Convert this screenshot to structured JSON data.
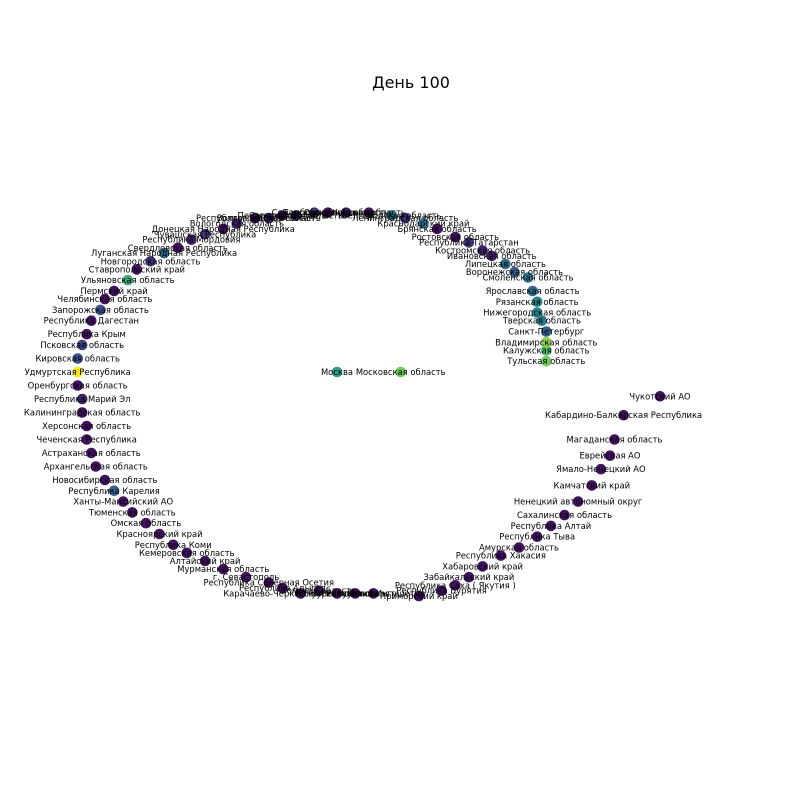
{
  "chart_data": {
    "type": "network",
    "title": "День 100",
    "colormap": "viridis",
    "color_scale": [
      0,
      1
    ],
    "nodes": [
      {
        "label": "Москва",
        "x": 0.0,
        "y": 0.0,
        "v": 0.55
      },
      {
        "label": "Московская область",
        "x": 0.14,
        "y": 0.0,
        "v": 0.78
      },
      {
        "label": "Тульская область",
        "x": 0.46,
        "y": 0.04,
        "v": 0.78
      },
      {
        "label": "Калужская область",
        "x": 0.46,
        "y": 0.08,
        "v": 0.7
      },
      {
        "label": "Владимирская область",
        "x": 0.46,
        "y": 0.11,
        "v": 0.82
      },
      {
        "label": "Санкт-Петербург",
        "x": 0.46,
        "y": 0.15,
        "v": 0.3
      },
      {
        "label": "Тверская область",
        "x": 0.45,
        "y": 0.19,
        "v": 0.4
      },
      {
        "label": "Нижегородская область",
        "x": 0.44,
        "y": 0.22,
        "v": 0.45
      },
      {
        "label": "Рязанская область",
        "x": 0.44,
        "y": 0.26,
        "v": 0.45
      },
      {
        "label": "Ярославская область",
        "x": 0.43,
        "y": 0.3,
        "v": 0.35
      },
      {
        "label": "Смоленская область",
        "x": 0.42,
        "y": 0.35,
        "v": 0.4
      },
      {
        "label": "Воронежская область",
        "x": 0.39,
        "y": 0.37,
        "v": 0.3
      },
      {
        "label": "Липецкая область",
        "x": 0.37,
        "y": 0.4,
        "v": 0.35
      },
      {
        "label": "Ивановская область",
        "x": 0.34,
        "y": 0.43,
        "v": 0.1
      },
      {
        "label": "Костромская область",
        "x": 0.32,
        "y": 0.45,
        "v": 0.1
      },
      {
        "label": "Республика Татарстан",
        "x": 0.29,
        "y": 0.48,
        "v": 0.15
      },
      {
        "label": "Ростовская область",
        "x": 0.26,
        "y": 0.5,
        "v": 0.05
      },
      {
        "label": "Брянская область",
        "x": 0.22,
        "y": 0.53,
        "v": 0.05
      },
      {
        "label": "Краснодарский край",
        "x": 0.19,
        "y": 0.55,
        "v": 0.35
      },
      {
        "label": "Ленинградская область",
        "x": 0.15,
        "y": 0.57,
        "v": 0.15
      },
      {
        "label": "Белгородская область",
        "x": 0.12,
        "y": 0.58,
        "v": 0.4
      },
      {
        "label": "Курская область",
        "x": 0.07,
        "y": 0.59,
        "v": 0.05
      },
      {
        "label": "Орловская область",
        "x": 0.02,
        "y": 0.59,
        "v": 0.1
      },
      {
        "label": "Тамбовская область",
        "x": -0.02,
        "y": 0.59,
        "v": 0.05
      },
      {
        "label": "Самарская область",
        "x": -0.05,
        "y": 0.59,
        "v": 0.15
      },
      {
        "label": "Саратовская область",
        "x": -0.09,
        "y": 0.58,
        "v": 0.1
      },
      {
        "label": "Пензенская область",
        "x": -0.12,
        "y": 0.58,
        "v": 0.05
      },
      {
        "label": "Волгоградская область",
        "x": -0.15,
        "y": 0.57,
        "v": 0.1
      },
      {
        "label": "Республика Башкортостан",
        "x": -0.18,
        "y": 0.57,
        "v": 0.05
      },
      {
        "label": "Вологодская область",
        "x": -0.22,
        "y": 0.55,
        "v": 0.1
      },
      {
        "label": "Донецкая Народная Республика",
        "x": -0.25,
        "y": 0.53,
        "v": 0.05
      },
      {
        "label": "Чувашская Республика",
        "x": -0.29,
        "y": 0.51,
        "v": 0.15
      },
      {
        "label": "Республика Мордовия",
        "x": -0.32,
        "y": 0.49,
        "v": 0.1
      },
      {
        "label": "Свердловская область",
        "x": -0.35,
        "y": 0.46,
        "v": 0.05
      },
      {
        "label": "Луганская Народная Республика",
        "x": -0.38,
        "y": 0.44,
        "v": 0.35
      },
      {
        "label": "Новгородская область",
        "x": -0.41,
        "y": 0.41,
        "v": 0.15
      },
      {
        "label": "Ставропольский край",
        "x": -0.44,
        "y": 0.38,
        "v": 0.05
      },
      {
        "label": "Ульяновская область",
        "x": -0.46,
        "y": 0.34,
        "v": 0.62
      },
      {
        "label": "Пермский край",
        "x": -0.49,
        "y": 0.3,
        "v": 0.05
      },
      {
        "label": "Челябинская область",
        "x": -0.51,
        "y": 0.27,
        "v": 0.05
      },
      {
        "label": "Запорожская область",
        "x": -0.52,
        "y": 0.23,
        "v": 0.25
      },
      {
        "label": "Республика Дагестан",
        "x": -0.54,
        "y": 0.19,
        "v": 0.05
      },
      {
        "label": "Республика Крым",
        "x": -0.55,
        "y": 0.14,
        "v": 0.05
      },
      {
        "label": "Псковская область",
        "x": -0.56,
        "y": 0.1,
        "v": 0.2
      },
      {
        "label": "Кировская область",
        "x": -0.57,
        "y": 0.05,
        "v": 0.25
      },
      {
        "label": "Удмуртская Республика",
        "x": -0.57,
        "y": 0.0,
        "v": 1.0
      },
      {
        "label": "Оренбургская область",
        "x": -0.57,
        "y": -0.05,
        "v": 0.05
      },
      {
        "label": "Республика Марий Эл",
        "x": -0.56,
        "y": -0.1,
        "v": 0.1
      },
      {
        "label": "Калининградская область",
        "x": -0.56,
        "y": -0.15,
        "v": 0.05
      },
      {
        "label": "Херсонская область",
        "x": -0.55,
        "y": -0.2,
        "v": 0.05
      },
      {
        "label": "Чеченская Республика",
        "x": -0.55,
        "y": -0.25,
        "v": 0.05
      },
      {
        "label": "Астраханская область",
        "x": -0.54,
        "y": -0.3,
        "v": 0.05
      },
      {
        "label": "Архангельская область",
        "x": -0.53,
        "y": -0.35,
        "v": 0.05
      },
      {
        "label": "Новосибирская область",
        "x": -0.51,
        "y": -0.4,
        "v": 0.05
      },
      {
        "label": "Республика Карелия",
        "x": -0.49,
        "y": -0.44,
        "v": 0.3
      },
      {
        "label": "Ханты-Мансийский АО",
        "x": -0.47,
        "y": -0.48,
        "v": 0.05
      },
      {
        "label": "Тюменская область",
        "x": -0.45,
        "y": -0.52,
        "v": 0.05
      },
      {
        "label": "Омская область",
        "x": -0.42,
        "y": -0.56,
        "v": 0.05
      },
      {
        "label": "Красноярский край",
        "x": -0.39,
        "y": -0.6,
        "v": 0.05
      },
      {
        "label": "Республика Коми",
        "x": -0.36,
        "y": -0.64,
        "v": 0.05
      },
      {
        "label": "Кемеровская область",
        "x": -0.33,
        "y": -0.67,
        "v": 0.05
      },
      {
        "label": "Алтайский край",
        "x": -0.29,
        "y": -0.7,
        "v": 0.05
      },
      {
        "label": "Мурманская область",
        "x": -0.25,
        "y": -0.73,
        "v": 0.05
      },
      {
        "label": "г. Севастополь",
        "x": -0.2,
        "y": -0.76,
        "v": 0.05
      },
      {
        "label": "Республика Северная Осетия",
        "x": -0.15,
        "y": -0.78,
        "v": 0.05
      },
      {
        "label": "Республика Адыгея",
        "x": -0.12,
        "y": -0.8,
        "v": 0.05
      },
      {
        "label": "Карачаево-Черкесская Республика",
        "x": -0.08,
        "y": -0.82,
        "v": 0.05
      },
      {
        "label": "Томская область",
        "x": -0.04,
        "y": -0.81,
        "v": 0.05
      },
      {
        "label": "Иркутская область",
        "x": 0.0,
        "y": -0.82,
        "v": 0.05
      },
      {
        "label": "Курганская область",
        "x": 0.04,
        "y": -0.82,
        "v": 0.05
      },
      {
        "label": "Республика Ингушетия",
        "x": 0.08,
        "y": -0.82,
        "v": 0.05
      },
      {
        "label": "Приморский край",
        "x": 0.18,
        "y": -0.83,
        "v": 0.05
      },
      {
        "label": "Республика Бурятия",
        "x": 0.23,
        "y": -0.81,
        "v": 0.05
      },
      {
        "label": "Республика Саха ( Якутия )",
        "x": 0.26,
        "y": -0.79,
        "v": 0.05
      },
      {
        "label": "Забайкальский край",
        "x": 0.29,
        "y": -0.76,
        "v": 0.05
      },
      {
        "label": "Хабаровский край",
        "x": 0.32,
        "y": -0.72,
        "v": 0.05
      },
      {
        "label": "Республика Хакасия",
        "x": 0.36,
        "y": -0.68,
        "v": 0.05
      },
      {
        "label": "Амурская область",
        "x": 0.4,
        "y": -0.65,
        "v": 0.05
      },
      {
        "label": "Республика Тыва",
        "x": 0.44,
        "y": -0.61,
        "v": 0.05
      },
      {
        "label": "Республика Алтай",
        "x": 0.47,
        "y": -0.57,
        "v": 0.05
      },
      {
        "label": "Сахалинская область",
        "x": 0.5,
        "y": -0.53,
        "v": 0.05
      },
      {
        "label": "Ненецкий автономный округ",
        "x": 0.53,
        "y": -0.48,
        "v": 0.05
      },
      {
        "label": "Камчатский край",
        "x": 0.56,
        "y": -0.42,
        "v": 0.05
      },
      {
        "label": "Ямало-Ненецкий АО",
        "x": 0.58,
        "y": -0.36,
        "v": 0.05
      },
      {
        "label": "Еврейская АО",
        "x": 0.6,
        "y": -0.31,
        "v": 0.05
      },
      {
        "label": "Магаданская область",
        "x": 0.61,
        "y": -0.25,
        "v": 0.05
      },
      {
        "label": "Кабардино-Балкарская Республика",
        "x": 0.63,
        "y": -0.16,
        "v": 0.05
      },
      {
        "label": "Чукотский АО",
        "x": 0.71,
        "y": -0.09,
        "v": 0.05
      }
    ]
  }
}
